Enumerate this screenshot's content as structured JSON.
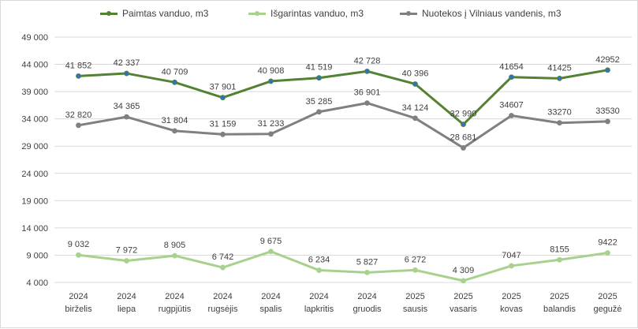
{
  "chart_data": {
    "type": "line",
    "title": "",
    "xlabel": "",
    "ylabel": "",
    "ylim": [
      4000,
      49000
    ],
    "yticks": [
      "49 000",
      "44 000",
      "39 000",
      "34 000",
      "29 000",
      "24 000",
      "19 000",
      "14 000",
      "9 000",
      "4 000"
    ],
    "ytick_values": [
      49000,
      44000,
      39000,
      34000,
      29000,
      24000,
      19000,
      14000,
      9000,
      4000
    ],
    "grid": "horizontal",
    "legend_position": "top",
    "categories": [
      [
        "2024",
        "birželis"
      ],
      [
        "2024",
        "liepa"
      ],
      [
        "2024",
        "rugpjūtis"
      ],
      [
        "2024",
        "rugsėjis"
      ],
      [
        "2024",
        "spalis"
      ],
      [
        "2024",
        "lapkritis"
      ],
      [
        "2024",
        "gruodis"
      ],
      [
        "2025",
        "sausis"
      ],
      [
        "2025",
        "vasaris"
      ],
      [
        "2025",
        "kovas"
      ],
      [
        "2025",
        "balandis"
      ],
      [
        "2025",
        "gegužė"
      ]
    ],
    "series": [
      {
        "name": "Paimtas vanduo, m3",
        "color": "#548235",
        "marker_color": "#2e75b6",
        "values": [
          41852,
          42337,
          40709,
          37901,
          40908,
          41519,
          42728,
          40396,
          32990,
          41654,
          41425,
          42952
        ],
        "labels": [
          "41 852",
          "42 337",
          "40 709",
          "37 901",
          "40 908",
          "41 519",
          "42 728",
          "40 396",
          "32 990",
          "41654",
          "41425",
          "42952"
        ]
      },
      {
        "name": "Išgarintas vanduo, m3",
        "color": "#a9d18e",
        "marker_color": "#a9d18e",
        "values": [
          9032,
          7972,
          8905,
          6742,
          9675,
          6234,
          5827,
          6272,
          4309,
          7047,
          8155,
          9422
        ],
        "labels": [
          "9 032",
          "7 972",
          "8 905",
          "6 742",
          "9 675",
          "6 234",
          "5 827",
          "6 272",
          "4 309",
          "7047",
          "8155",
          "9422"
        ]
      },
      {
        "name": "Nuotekos į Vilniaus vandenis, m3",
        "color": "#808080",
        "marker_color": "#808080",
        "values": [
          32820,
          34365,
          31804,
          31159,
          31233,
          35285,
          36901,
          34124,
          28681,
          34607,
          33270,
          33530
        ],
        "labels": [
          "32 820",
          "34 365",
          "31 804",
          "31 159",
          "31 233",
          "35 285",
          "36 901",
          "34 124",
          "28 681",
          "34607",
          "33270",
          "33530"
        ]
      }
    ]
  }
}
